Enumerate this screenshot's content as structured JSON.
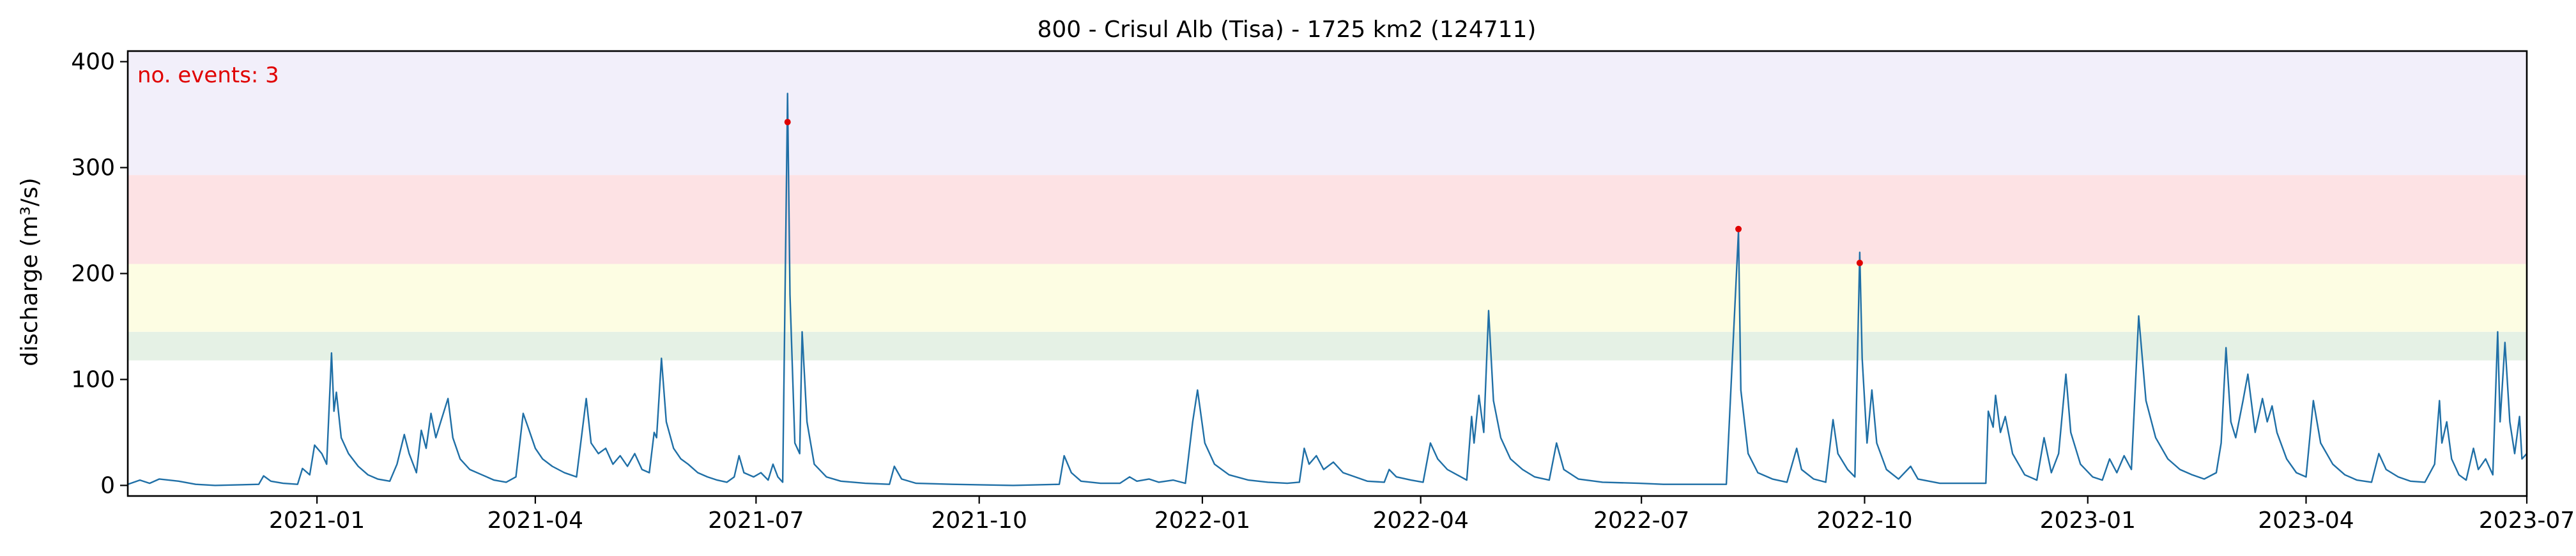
{
  "chart_data": {
    "type": "line",
    "title": "800 - Crisul Alb (Tisa) - 1725 km2 (124711)",
    "xlabel": "",
    "ylabel": "discharge (m³/s)",
    "xlim": [
      "2020-10-15",
      "2023-07-01"
    ],
    "ylim": [
      -10,
      410
    ],
    "x_ticks": [
      "2021-01",
      "2021-04",
      "2021-07",
      "2021-10",
      "2022-01",
      "2022-04",
      "2022-07",
      "2022-10",
      "2023-01",
      "2023-04",
      "2023-07"
    ],
    "y_ticks": [
      0,
      100,
      200,
      300,
      400
    ],
    "grid": false,
    "annotation": "no. events: 3",
    "threshold_bands": [
      {
        "from": 118,
        "to": 145,
        "color": "#e5f1e5"
      },
      {
        "from": 145,
        "to": 209,
        "color": "#fdfde3"
      },
      {
        "from": 209,
        "to": 293,
        "color": "#fde2e4"
      },
      {
        "from": 293,
        "to": 410,
        "color": "#f2effa"
      }
    ],
    "series": [
      {
        "color": "#1f6fa6",
        "points": [
          [
            "2020-10-15",
            1
          ],
          [
            "2020-10-20",
            5
          ],
          [
            "2020-10-24",
            2
          ],
          [
            "2020-10-28",
            6
          ],
          [
            "2020-11-05",
            4
          ],
          [
            "2020-11-12",
            1
          ],
          [
            "2020-11-20",
            0
          ],
          [
            "2020-12-08",
            1
          ],
          [
            "2020-12-10",
            9
          ],
          [
            "2020-12-13",
            4
          ],
          [
            "2020-12-18",
            2
          ],
          [
            "2020-12-24",
            1
          ],
          [
            "2020-12-26",
            16
          ],
          [
            "2020-12-29",
            10
          ],
          [
            "2020-12-31",
            38
          ],
          [
            "2021-01-03",
            30
          ],
          [
            "2021-01-05",
            20
          ],
          [
            "2021-01-07",
            125
          ],
          [
            "2021-01-08",
            70
          ],
          [
            "2021-01-09",
            88
          ],
          [
            "2021-01-11",
            45
          ],
          [
            "2021-01-14",
            30
          ],
          [
            "2021-01-18",
            18
          ],
          [
            "2021-01-22",
            10
          ],
          [
            "2021-01-26",
            6
          ],
          [
            "2021-01-31",
            4
          ],
          [
            "2021-02-03",
            20
          ],
          [
            "2021-02-06",
            48
          ],
          [
            "2021-02-08",
            30
          ],
          [
            "2021-02-11",
            12
          ],
          [
            "2021-02-13",
            52
          ],
          [
            "2021-02-15",
            35
          ],
          [
            "2021-02-17",
            68
          ],
          [
            "2021-02-19",
            45
          ],
          [
            "2021-02-21",
            60
          ],
          [
            "2021-02-24",
            82
          ],
          [
            "2021-02-26",
            45
          ],
          [
            "2021-03-01",
            25
          ],
          [
            "2021-03-05",
            15
          ],
          [
            "2021-03-10",
            10
          ],
          [
            "2021-03-15",
            5
          ],
          [
            "2021-03-20",
            3
          ],
          [
            "2021-03-24",
            8
          ],
          [
            "2021-03-27",
            68
          ],
          [
            "2021-03-29",
            55
          ],
          [
            "2021-04-01",
            35
          ],
          [
            "2021-04-04",
            25
          ],
          [
            "2021-04-08",
            18
          ],
          [
            "2021-04-13",
            12
          ],
          [
            "2021-04-18",
            8
          ],
          [
            "2021-04-22",
            82
          ],
          [
            "2021-04-24",
            40
          ],
          [
            "2021-04-27",
            30
          ],
          [
            "2021-04-30",
            35
          ],
          [
            "2021-05-03",
            20
          ],
          [
            "2021-05-06",
            28
          ],
          [
            "2021-05-09",
            18
          ],
          [
            "2021-05-12",
            30
          ],
          [
            "2021-05-15",
            15
          ],
          [
            "2021-05-18",
            12
          ],
          [
            "2021-05-20",
            50
          ],
          [
            "2021-05-21",
            45
          ],
          [
            "2021-05-23",
            120
          ],
          [
            "2021-05-25",
            60
          ],
          [
            "2021-05-28",
            35
          ],
          [
            "2021-05-31",
            25
          ],
          [
            "2021-06-03",
            20
          ],
          [
            "2021-06-07",
            12
          ],
          [
            "2021-06-11",
            8
          ],
          [
            "2021-06-15",
            5
          ],
          [
            "2021-06-19",
            3
          ],
          [
            "2021-06-22",
            8
          ],
          [
            "2021-06-24",
            28
          ],
          [
            "2021-06-26",
            12
          ],
          [
            "2021-06-30",
            8
          ],
          [
            "2021-07-03",
            12
          ],
          [
            "2021-07-06",
            5
          ],
          [
            "2021-07-08",
            20
          ],
          [
            "2021-07-10",
            8
          ],
          [
            "2021-07-12",
            3
          ],
          [
            "2021-07-14",
            370
          ],
          [
            "2021-07-15",
            180
          ],
          [
            "2021-07-17",
            40
          ],
          [
            "2021-07-19",
            30
          ],
          [
            "2021-07-20",
            145
          ],
          [
            "2021-07-22",
            60
          ],
          [
            "2021-07-25",
            20
          ],
          [
            "2021-07-30",
            8
          ],
          [
            "2021-08-05",
            4
          ],
          [
            "2021-08-15",
            2
          ],
          [
            "2021-08-25",
            1
          ],
          [
            "2021-08-27",
            18
          ],
          [
            "2021-08-30",
            6
          ],
          [
            "2021-09-05",
            2
          ],
          [
            "2021-09-20",
            1
          ],
          [
            "2021-10-15",
            0
          ],
          [
            "2021-11-03",
            1
          ],
          [
            "2021-11-05",
            28
          ],
          [
            "2021-11-08",
            12
          ],
          [
            "2021-11-12",
            4
          ],
          [
            "2021-11-20",
            2
          ],
          [
            "2021-11-28",
            2
          ],
          [
            "2021-12-02",
            8
          ],
          [
            "2021-12-05",
            4
          ],
          [
            "2021-12-10",
            6
          ],
          [
            "2021-12-14",
            3
          ],
          [
            "2021-12-20",
            5
          ],
          [
            "2021-12-25",
            2
          ],
          [
            "2021-12-28",
            60
          ],
          [
            "2021-12-30",
            90
          ],
          [
            "2022-01-02",
            40
          ],
          [
            "2022-01-06",
            20
          ],
          [
            "2022-01-12",
            10
          ],
          [
            "2022-01-20",
            5
          ],
          [
            "2022-01-28",
            3
          ],
          [
            "2022-02-05",
            2
          ],
          [
            "2022-02-10",
            3
          ],
          [
            "2022-02-12",
            35
          ],
          [
            "2022-02-14",
            20
          ],
          [
            "2022-02-17",
            28
          ],
          [
            "2022-02-20",
            15
          ],
          [
            "2022-02-24",
            22
          ],
          [
            "2022-02-28",
            12
          ],
          [
            "2022-03-05",
            8
          ],
          [
            "2022-03-10",
            4
          ],
          [
            "2022-03-17",
            3
          ],
          [
            "2022-03-19",
            15
          ],
          [
            "2022-03-22",
            8
          ],
          [
            "2022-03-28",
            5
          ],
          [
            "2022-04-02",
            3
          ],
          [
            "2022-04-05",
            40
          ],
          [
            "2022-04-08",
            25
          ],
          [
            "2022-04-12",
            15
          ],
          [
            "2022-04-16",
            10
          ],
          [
            "2022-04-20",
            5
          ],
          [
            "2022-04-22",
            65
          ],
          [
            "2022-04-23",
            40
          ],
          [
            "2022-04-25",
            85
          ],
          [
            "2022-04-27",
            50
          ],
          [
            "2022-04-29",
            165
          ],
          [
            "2022-05-01",
            80
          ],
          [
            "2022-05-04",
            45
          ],
          [
            "2022-05-08",
            25
          ],
          [
            "2022-05-13",
            15
          ],
          [
            "2022-05-18",
            8
          ],
          [
            "2022-05-24",
            5
          ],
          [
            "2022-05-27",
            40
          ],
          [
            "2022-05-30",
            15
          ],
          [
            "2022-06-05",
            6
          ],
          [
            "2022-06-15",
            3
          ],
          [
            "2022-06-30",
            2
          ],
          [
            "2022-07-10",
            1
          ],
          [
            "2022-08-05",
            1
          ],
          [
            "2022-08-10",
            240
          ],
          [
            "2022-08-11",
            90
          ],
          [
            "2022-08-14",
            30
          ],
          [
            "2022-08-18",
            12
          ],
          [
            "2022-08-24",
            6
          ],
          [
            "2022-08-30",
            3
          ],
          [
            "2022-09-03",
            35
          ],
          [
            "2022-09-05",
            15
          ],
          [
            "2022-09-10",
            6
          ],
          [
            "2022-09-15",
            3
          ],
          [
            "2022-09-18",
            62
          ],
          [
            "2022-09-20",
            30
          ],
          [
            "2022-09-24",
            15
          ],
          [
            "2022-09-27",
            8
          ],
          [
            "2022-09-29",
            220
          ],
          [
            "2022-09-30",
            120
          ],
          [
            "2022-10-02",
            40
          ],
          [
            "2022-10-04",
            90
          ],
          [
            "2022-10-06",
            40
          ],
          [
            "2022-10-10",
            15
          ],
          [
            "2022-10-15",
            6
          ],
          [
            "2022-10-20",
            18
          ],
          [
            "2022-10-23",
            6
          ],
          [
            "2022-11-01",
            2
          ],
          [
            "2022-11-20",
            2
          ],
          [
            "2022-11-21",
            70
          ],
          [
            "2022-11-23",
            55
          ],
          [
            "2022-11-24",
            85
          ],
          [
            "2022-11-26",
            50
          ],
          [
            "2022-11-28",
            65
          ],
          [
            "2022-12-01",
            30
          ],
          [
            "2022-12-06",
            10
          ],
          [
            "2022-12-11",
            5
          ],
          [
            "2022-12-14",
            45
          ],
          [
            "2022-12-17",
            12
          ],
          [
            "2022-12-20",
            30
          ],
          [
            "2022-12-23",
            105
          ],
          [
            "2022-12-25",
            50
          ],
          [
            "2022-12-29",
            20
          ],
          [
            "2023-01-03",
            8
          ],
          [
            "2023-01-07",
            5
          ],
          [
            "2023-01-10",
            25
          ],
          [
            "2023-01-13",
            12
          ],
          [
            "2023-01-16",
            28
          ],
          [
            "2023-01-19",
            15
          ],
          [
            "2023-01-22",
            160
          ],
          [
            "2023-01-25",
            80
          ],
          [
            "2023-01-29",
            45
          ],
          [
            "2023-02-03",
            25
          ],
          [
            "2023-02-08",
            15
          ],
          [
            "2023-02-13",
            10
          ],
          [
            "2023-02-18",
            6
          ],
          [
            "2023-02-23",
            12
          ],
          [
            "2023-02-25",
            40
          ],
          [
            "2023-02-27",
            130
          ],
          [
            "2023-03-01",
            60
          ],
          [
            "2023-03-03",
            45
          ],
          [
            "2023-03-06",
            80
          ],
          [
            "2023-03-08",
            105
          ],
          [
            "2023-03-11",
            50
          ],
          [
            "2023-03-14",
            82
          ],
          [
            "2023-03-16",
            60
          ],
          [
            "2023-03-18",
            75
          ],
          [
            "2023-03-20",
            50
          ],
          [
            "2023-03-24",
            25
          ],
          [
            "2023-03-28",
            12
          ],
          [
            "2023-04-01",
            8
          ],
          [
            "2023-04-04",
            80
          ],
          [
            "2023-04-07",
            40
          ],
          [
            "2023-04-12",
            20
          ],
          [
            "2023-04-17",
            10
          ],
          [
            "2023-04-22",
            5
          ],
          [
            "2023-04-28",
            3
          ],
          [
            "2023-05-01",
            30
          ],
          [
            "2023-05-04",
            15
          ],
          [
            "2023-05-09",
            8
          ],
          [
            "2023-05-14",
            4
          ],
          [
            "2023-05-20",
            3
          ],
          [
            "2023-05-24",
            20
          ],
          [
            "2023-05-26",
            80
          ],
          [
            "2023-05-27",
            40
          ],
          [
            "2023-05-29",
            60
          ],
          [
            "2023-05-31",
            25
          ],
          [
            "2023-06-03",
            10
          ],
          [
            "2023-06-06",
            5
          ],
          [
            "2023-06-09",
            35
          ],
          [
            "2023-06-11",
            15
          ],
          [
            "2023-06-14",
            25
          ],
          [
            "2023-06-17",
            10
          ],
          [
            "2023-06-19",
            145
          ],
          [
            "2023-06-20",
            60
          ],
          [
            "2023-06-22",
            135
          ],
          [
            "2023-06-24",
            60
          ],
          [
            "2023-06-26",
            30
          ],
          [
            "2023-06-28",
            65
          ],
          [
            "2023-06-29",
            25
          ],
          [
            "2023-07-01",
            30
          ]
        ]
      }
    ],
    "events": [
      {
        "x": "2021-07-14",
        "y": 343
      },
      {
        "x": "2022-08-10",
        "y": 242
      },
      {
        "x": "2022-09-29",
        "y": 210
      }
    ],
    "event_color": "#e00000"
  }
}
